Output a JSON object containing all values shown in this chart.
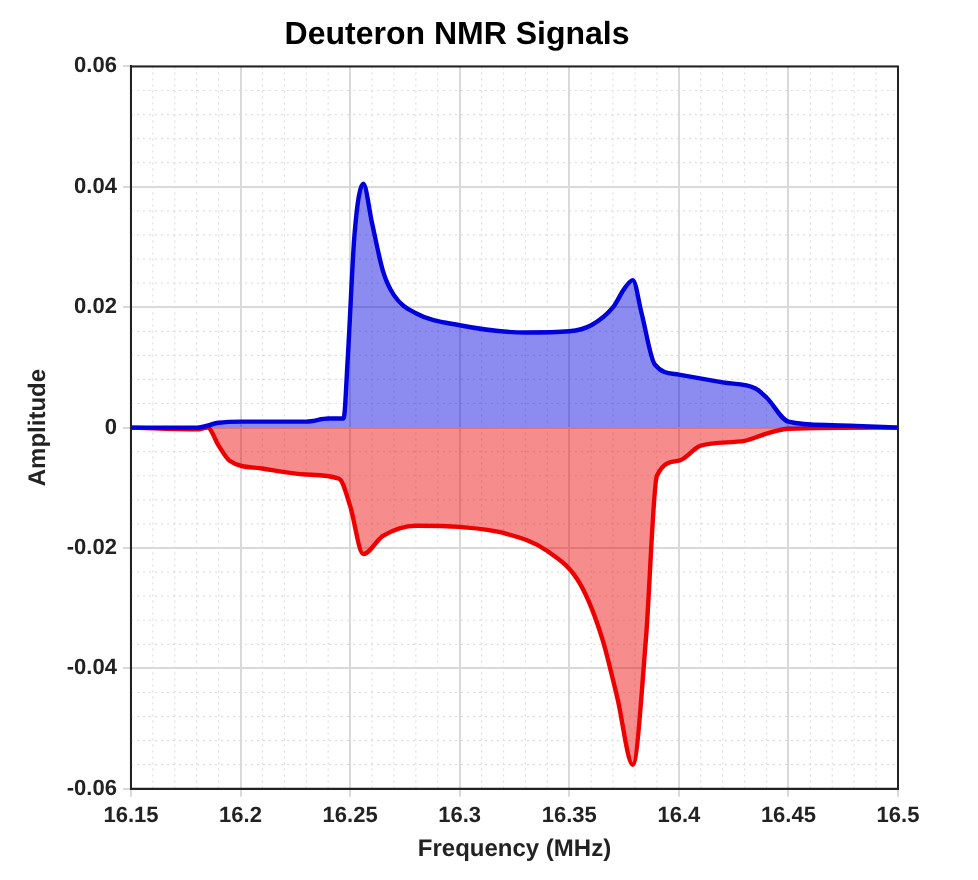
{
  "chart_data": {
    "type": "area",
    "title": "Deuteron NMR Signals",
    "xlabel": "Frequency (MHz)",
    "ylabel": "Amplitude",
    "xlim": [
      16.15,
      16.5
    ],
    "xticks": [
      16.15,
      16.2,
      16.25,
      16.3,
      16.35,
      16.4,
      16.45,
      16.5
    ],
    "ylim": [
      -0.06,
      0.06
    ],
    "yticks": [
      -0.06,
      -0.04,
      -0.02,
      0,
      0.02,
      0.04,
      0.06
    ],
    "grid": true,
    "legend": false,
    "marker": "none",
    "line_style": "solid",
    "series": [
      {
        "color": "#0000dd",
        "x": [
          16.15,
          16.18,
          16.19,
          16.2,
          16.23,
          16.24,
          16.247,
          16.249,
          16.252,
          16.256,
          16.26,
          16.265,
          16.27,
          16.28,
          16.3,
          16.33,
          16.35,
          16.36,
          16.37,
          16.375,
          16.379,
          16.383,
          16.389,
          16.4,
          16.42,
          16.435,
          16.44,
          16.45,
          16.47,
          16.5
        ],
        "values": [
          0,
          0,
          0.0008,
          0.001,
          0.001,
          0.0015,
          0.0015,
          0.012,
          0.032,
          0.0405,
          0.034,
          0.026,
          0.022,
          0.019,
          0.017,
          0.0158,
          0.016,
          0.017,
          0.02,
          0.023,
          0.0245,
          0.019,
          0.0105,
          0.0088,
          0.0075,
          0.0065,
          0.005,
          0.001,
          0.0004,
          0
        ]
      },
      {
        "color": "#ee0000",
        "x": [
          16.15,
          16.18,
          16.185,
          16.19,
          16.195,
          16.21,
          16.23,
          16.245,
          16.25,
          16.256,
          16.265,
          16.28,
          16.3,
          16.32,
          16.34,
          16.355,
          16.365,
          16.372,
          16.379,
          16.385,
          16.39,
          16.4,
          16.41,
          16.43,
          16.44,
          16.45,
          16.5
        ],
        "values": [
          0,
          -0.0003,
          0,
          -0.003,
          -0.0055,
          -0.0068,
          -0.0078,
          -0.0085,
          -0.013,
          -0.021,
          -0.018,
          -0.0163,
          -0.0165,
          -0.0175,
          -0.0205,
          -0.026,
          -0.035,
          -0.045,
          -0.056,
          -0.035,
          -0.008,
          -0.0055,
          -0.003,
          -0.0022,
          -0.001,
          -0.0002,
          0
        ]
      }
    ]
  }
}
